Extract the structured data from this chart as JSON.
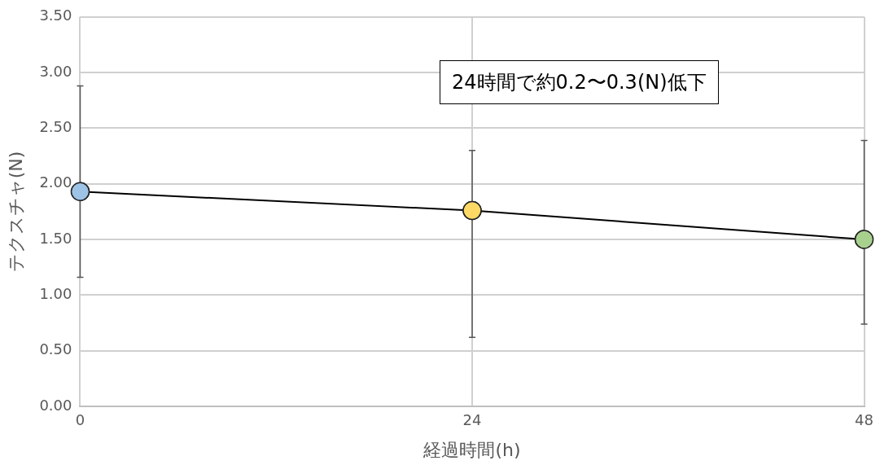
{
  "chart_data": {
    "type": "line",
    "xlabel": "経過時間(h)",
    "ylabel": "テクスチャ(N)",
    "x": [
      0,
      24,
      48
    ],
    "series": [
      {
        "color": "#000000",
        "colors": [
          "#9dc3e6",
          "#ffd966",
          "#a9d18e"
        ],
        "values": [
          1.93,
          1.76,
          1.5
        ],
        "errors": [
          [
            1.16,
            2.88
          ],
          [
            0.62,
            2.3
          ],
          [
            0.74,
            2.39
          ]
        ]
      }
    ],
    "xlim": [
      0,
      48
    ],
    "xticks": [
      0,
      24,
      48
    ],
    "ylim": [
      0,
      3.5
    ],
    "yticks": [
      {
        "value": 0,
        "label": "0.00"
      },
      {
        "value": 0.5,
        "label": "0.50"
      },
      {
        "value": 1,
        "label": "1.00"
      },
      {
        "value": 1.5,
        "label": "1.50"
      },
      {
        "value": 2,
        "label": "2.00"
      },
      {
        "value": 2.5,
        "label": "2.50"
      },
      {
        "value": 3,
        "label": "3.00"
      },
      {
        "value": 3.5,
        "label": "3.50"
      }
    ],
    "grid": true,
    "marker": "circle",
    "line_style": "solid",
    "annotations": [
      "24時間で約0.2〜0.3(N)低下"
    ]
  }
}
